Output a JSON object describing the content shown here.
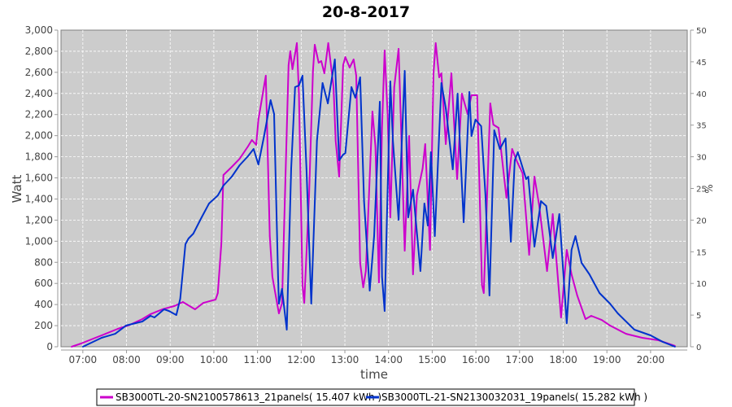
{
  "chart_data": {
    "type": "line",
    "title": "20-8-2017",
    "xlabel": "time",
    "ylabel": "Watt",
    "y2label": "%",
    "xlim": [
      6.5,
      20.84
    ],
    "ylim": [
      0,
      3000
    ],
    "y2lim": [
      0,
      50
    ],
    "grid": true,
    "legend": "bottom",
    "x_unit": "hours (decimal)",
    "xticks": [
      7,
      8,
      9,
      10,
      11,
      12,
      13,
      14,
      15,
      16,
      17,
      18,
      19,
      20
    ],
    "xtick_labels": [
      "07:00",
      "08:00",
      "09:00",
      "10:00",
      "11:00",
      "12:00",
      "13:00",
      "14:00",
      "15:00",
      "16:00",
      "17:00",
      "18:00",
      "19:00",
      "20:00"
    ],
    "yticks": [
      0,
      200,
      400,
      600,
      800,
      1000,
      1200,
      1400,
      1600,
      1800,
      2000,
      2200,
      2400,
      2600,
      2800,
      3000
    ],
    "ytick_labels": [
      "0",
      "200",
      "400",
      "600",
      "800",
      "1,000",
      "1,200",
      "1,400",
      "1,600",
      "1,800",
      "2,000",
      "2,200",
      "2,400",
      "2,600",
      "2,800",
      "3,000"
    ],
    "y2ticks": [
      0,
      5,
      10,
      15,
      20,
      25,
      30,
      35,
      40,
      45,
      50
    ],
    "y2tick_labels": [
      "0",
      "5",
      "10",
      "15",
      "20",
      "25",
      "30",
      "35",
      "40",
      "45",
      "50"
    ],
    "series": [
      {
        "name": "SB3000TL-20-SN2100578613_21panels( 15.407 kWh )",
        "color": "#cc00cc",
        "points": [
          [
            6.74,
            0
          ],
          [
            6.96,
            31
          ],
          [
            7.24,
            77
          ],
          [
            7.52,
            123
          ],
          [
            7.8,
            170
          ],
          [
            8.08,
            208
          ],
          [
            8.36,
            262
          ],
          [
            8.55,
            309
          ],
          [
            8.82,
            355
          ],
          [
            9.1,
            386
          ],
          [
            9.29,
            424
          ],
          [
            9.57,
            355
          ],
          [
            9.76,
            416
          ],
          [
            10.04,
            447
          ],
          [
            10.09,
            509
          ],
          [
            10.17,
            972
          ],
          [
            10.22,
            1627
          ],
          [
            10.41,
            1704
          ],
          [
            10.59,
            1781
          ],
          [
            10.78,
            1897
          ],
          [
            10.87,
            1959
          ],
          [
            10.97,
            1913
          ],
          [
            11.02,
            2152
          ],
          [
            11.19,
            2568
          ],
          [
            11.28,
            1049
          ],
          [
            11.34,
            663
          ],
          [
            11.49,
            316
          ],
          [
            11.56,
            409
          ],
          [
            11.71,
            2668
          ],
          [
            11.75,
            2800
          ],
          [
            11.8,
            2630
          ],
          [
            11.9,
            2877
          ],
          [
            11.95,
            2383
          ],
          [
            12.03,
            586
          ],
          [
            12.07,
            416
          ],
          [
            12.18,
            1434
          ],
          [
            12.27,
            2614
          ],
          [
            12.31,
            2861
          ],
          [
            12.4,
            2691
          ],
          [
            12.46,
            2707
          ],
          [
            12.53,
            2591
          ],
          [
            12.62,
            2877
          ],
          [
            12.74,
            2460
          ],
          [
            12.79,
            1951
          ],
          [
            12.87,
            1612
          ],
          [
            12.96,
            2668
          ],
          [
            13.01,
            2745
          ],
          [
            13.11,
            2645
          ],
          [
            13.2,
            2722
          ],
          [
            13.26,
            2568
          ],
          [
            13.35,
            794
          ],
          [
            13.42,
            563
          ],
          [
            13.48,
            717
          ],
          [
            13.63,
            2229
          ],
          [
            13.7,
            1897
          ],
          [
            13.78,
            609
          ],
          [
            13.85,
            2074
          ],
          [
            13.91,
            2807
          ],
          [
            13.98,
            2206
          ],
          [
            14.04,
            1226
          ],
          [
            14.13,
            2460
          ],
          [
            14.23,
            2823
          ],
          [
            14.28,
            2152
          ],
          [
            14.37,
            910
          ],
          [
            14.47,
            1997
          ],
          [
            14.56,
            686
          ],
          [
            14.65,
            1434
          ],
          [
            14.78,
            1689
          ],
          [
            14.84,
            1920
          ],
          [
            14.95,
            918
          ],
          [
            15.03,
            2591
          ],
          [
            15.08,
            2877
          ],
          [
            15.16,
            2553
          ],
          [
            15.21,
            2591
          ],
          [
            15.31,
            1920
          ],
          [
            15.44,
            2591
          ],
          [
            15.57,
            1589
          ],
          [
            15.68,
            2398
          ],
          [
            15.81,
            2206
          ],
          [
            15.9,
            2383
          ],
          [
            16.03,
            2383
          ],
          [
            16.14,
            586
          ],
          [
            16.18,
            509
          ],
          [
            16.33,
            2306
          ],
          [
            16.4,
            2105
          ],
          [
            16.52,
            2074
          ],
          [
            16.7,
            1411
          ],
          [
            16.83,
            1874
          ],
          [
            16.93,
            1766
          ],
          [
            17.07,
            1643
          ],
          [
            17.22,
            871
          ],
          [
            17.34,
            1612
          ],
          [
            17.45,
            1334
          ],
          [
            17.63,
            717
          ],
          [
            17.76,
            1257
          ],
          [
            17.95,
            278
          ],
          [
            18.08,
            918
          ],
          [
            18.19,
            686
          ],
          [
            18.32,
            486
          ],
          [
            18.51,
            262
          ],
          [
            18.64,
            293
          ],
          [
            18.88,
            254
          ],
          [
            19.07,
            201
          ],
          [
            19.44,
            123
          ],
          [
            19.81,
            85
          ],
          [
            20.18,
            62
          ],
          [
            20.56,
            8
          ]
        ]
      },
      {
        "name": "SB3000TL-21-SN2130032031_19panels( 15.282 kWh )",
        "color": "#0033cc",
        "points": [
          [
            7.0,
            0
          ],
          [
            7.43,
            85
          ],
          [
            7.74,
            123
          ],
          [
            7.99,
            201
          ],
          [
            8.36,
            239
          ],
          [
            8.55,
            293
          ],
          [
            8.64,
            278
          ],
          [
            8.86,
            355
          ],
          [
            8.97,
            339
          ],
          [
            9.14,
            301
          ],
          [
            9.23,
            455
          ],
          [
            9.35,
            972
          ],
          [
            9.42,
            1026
          ],
          [
            9.53,
            1072
          ],
          [
            9.72,
            1226
          ],
          [
            9.89,
            1357
          ],
          [
            10.09,
            1434
          ],
          [
            10.22,
            1527
          ],
          [
            10.41,
            1612
          ],
          [
            10.59,
            1720
          ],
          [
            10.78,
            1805
          ],
          [
            10.91,
            1874
          ],
          [
            11.02,
            1727
          ],
          [
            11.15,
            1997
          ],
          [
            11.3,
            2337
          ],
          [
            11.38,
            2206
          ],
          [
            11.47,
            663
          ],
          [
            11.49,
            409
          ],
          [
            11.56,
            548
          ],
          [
            11.67,
            162
          ],
          [
            11.77,
            1689
          ],
          [
            11.86,
            2460
          ],
          [
            11.95,
            2476
          ],
          [
            12.03,
            2568
          ],
          [
            12.12,
            1689
          ],
          [
            12.23,
            409
          ],
          [
            12.36,
            1951
          ],
          [
            12.49,
            2499
          ],
          [
            12.61,
            2306
          ],
          [
            12.77,
            2722
          ],
          [
            12.87,
            1766
          ],
          [
            12.96,
            1820
          ],
          [
            13.01,
            1835
          ],
          [
            13.15,
            2460
          ],
          [
            13.24,
            2360
          ],
          [
            13.35,
            2553
          ],
          [
            13.44,
            1380
          ],
          [
            13.57,
            532
          ],
          [
            13.67,
            1049
          ],
          [
            13.8,
            2321
          ],
          [
            13.85,
            663
          ],
          [
            13.91,
            339
          ],
          [
            14.04,
            2514
          ],
          [
            14.1,
            1951
          ],
          [
            14.23,
            1203
          ],
          [
            14.37,
            2614
          ],
          [
            14.45,
            1226
          ],
          [
            14.56,
            1488
          ],
          [
            14.73,
            717
          ],
          [
            14.82,
            1357
          ],
          [
            14.9,
            1149
          ],
          [
            14.97,
            1843
          ],
          [
            15.06,
            1049
          ],
          [
            15.21,
            2499
          ],
          [
            15.31,
            2260
          ],
          [
            15.47,
            1681
          ],
          [
            15.58,
            2398
          ],
          [
            15.72,
            1180
          ],
          [
            15.85,
            2414
          ],
          [
            15.9,
            1997
          ],
          [
            15.99,
            2152
          ],
          [
            16.12,
            2090
          ],
          [
            16.22,
            1434
          ],
          [
            16.31,
            486
          ],
          [
            16.42,
            2051
          ],
          [
            16.55,
            1874
          ],
          [
            16.68,
            1974
          ],
          [
            16.8,
            995
          ],
          [
            16.89,
            1766
          ],
          [
            16.96,
            1843
          ],
          [
            17.15,
            1589
          ],
          [
            17.2,
            1612
          ],
          [
            17.34,
            949
          ],
          [
            17.49,
            1380
          ],
          [
            17.61,
            1334
          ],
          [
            17.76,
            841
          ],
          [
            17.91,
            1257
          ],
          [
            18.08,
            224
          ],
          [
            18.19,
            918
          ],
          [
            18.28,
            1049
          ],
          [
            18.42,
            794
          ],
          [
            18.6,
            686
          ],
          [
            18.83,
            509
          ],
          [
            19.07,
            409
          ],
          [
            19.25,
            316
          ],
          [
            19.63,
            162
          ],
          [
            20.0,
            108
          ],
          [
            20.28,
            46
          ],
          [
            20.56,
            0
          ]
        ]
      }
    ]
  }
}
